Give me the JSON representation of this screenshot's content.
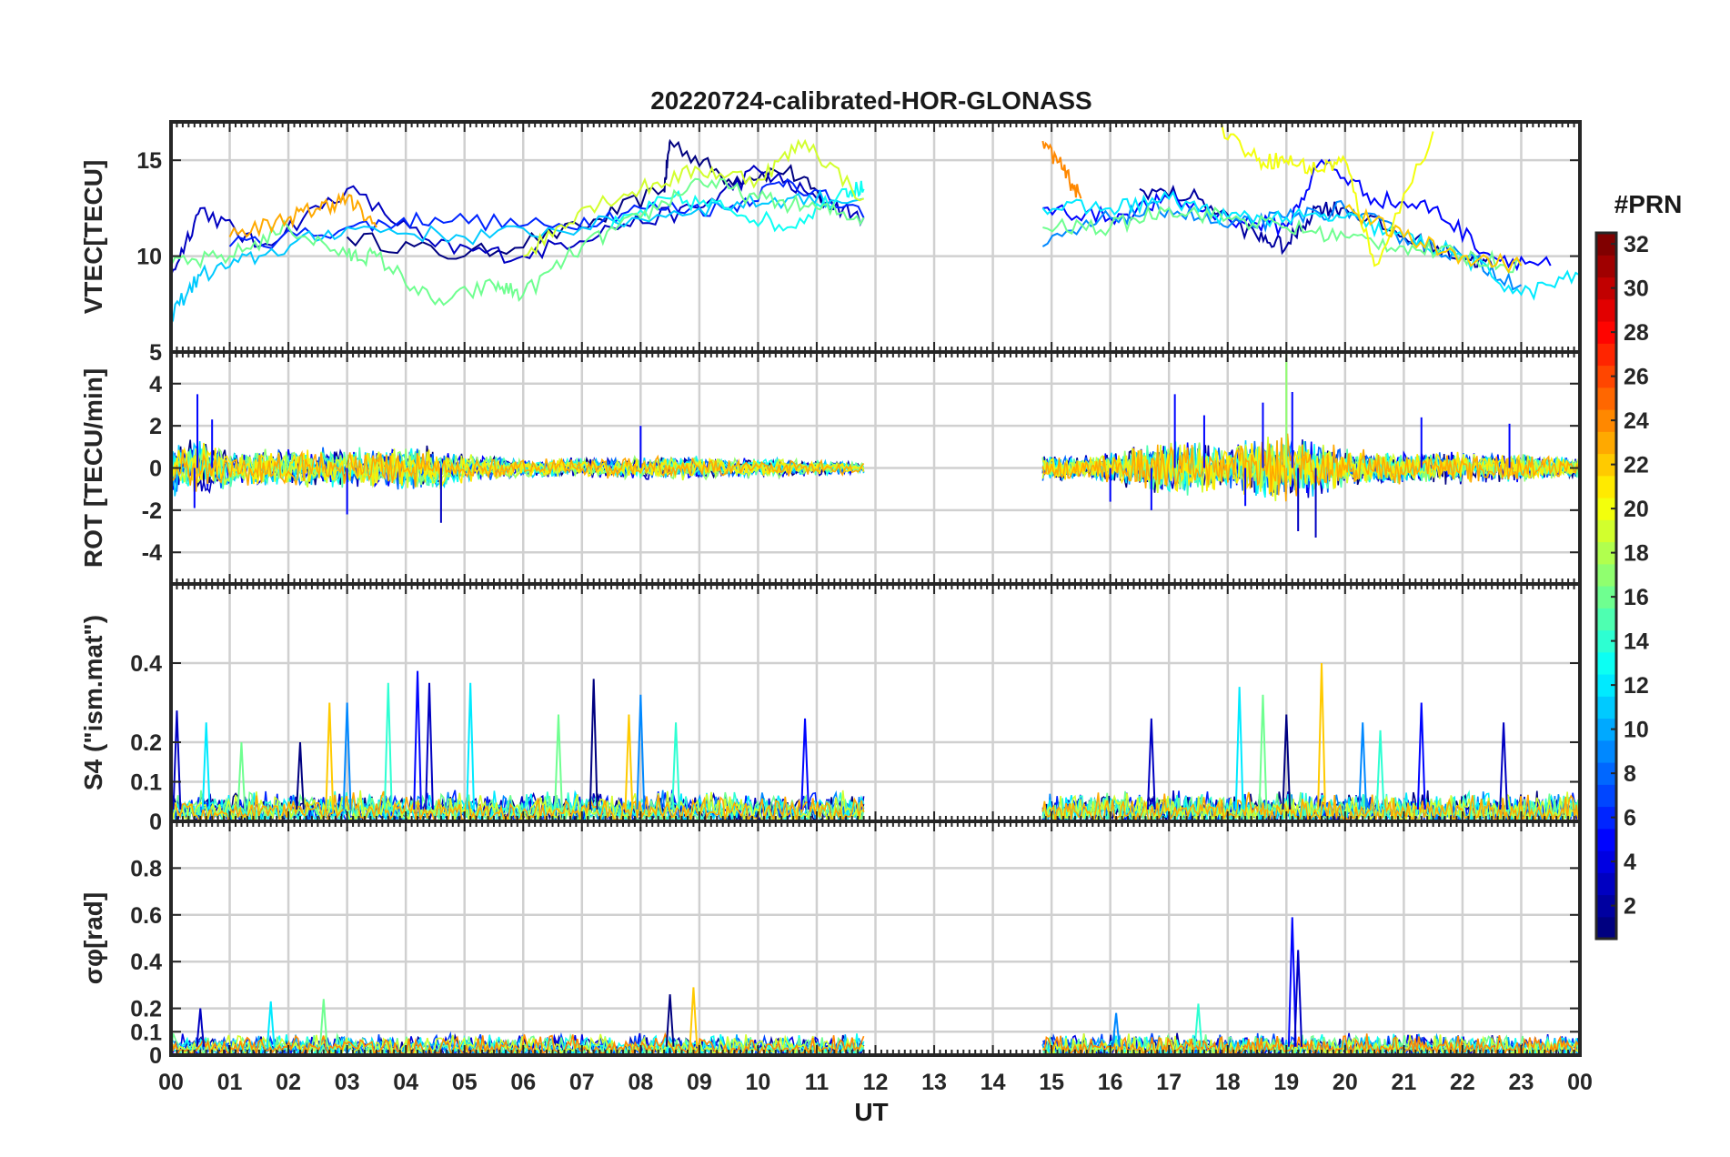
{
  "title": "20220724-calibrated-HOR-GLONASS",
  "xlabel": "UT",
  "x_ticks": [
    "00",
    "01",
    "02",
    "03",
    "04",
    "05",
    "06",
    "07",
    "08",
    "09",
    "10",
    "11",
    "12",
    "13",
    "14",
    "15",
    "16",
    "17",
    "18",
    "19",
    "20",
    "21",
    "22",
    "23",
    "00"
  ],
  "colorbar": {
    "label": "#PRN",
    "range": [
      1,
      32
    ],
    "ticks": [
      2,
      4,
      6,
      8,
      10,
      12,
      14,
      16,
      18,
      20,
      22,
      24,
      26,
      28,
      30,
      32
    ],
    "colormap": "jet",
    "colors": [
      "#00008f",
      "#0000ff",
      "#0080ff",
      "#00ffff",
      "#80ff80",
      "#ffff00",
      "#ff8000",
      "#ff0000",
      "#800000"
    ]
  },
  "chart_data": [
    {
      "type": "line",
      "panel": "vtec",
      "ylabel": "VTEC[TECU]",
      "ylim": [
        5,
        17
      ],
      "yticks": [
        5,
        10,
        15
      ],
      "xlim": [
        0,
        24
      ],
      "grid": true,
      "data_gap": [
        11.8,
        14.85
      ],
      "series": [
        {
          "prn": 1,
          "x": [
            3.0,
            5.0,
            7.0,
            8.4,
            8.5,
            9.5,
            10.5,
            11.3
          ],
          "y": [
            11.0,
            10.0,
            11.5,
            13.5,
            16.0,
            14.0,
            14.5,
            12.5
          ]
        },
        {
          "prn": 3,
          "x": [
            0.0,
            0.5,
            1.5,
            3.0,
            4.5,
            6.0,
            7.5,
            9.0,
            10.0,
            11.0,
            11.8
          ],
          "y": [
            9.0,
            12.5,
            10.5,
            13.5,
            10.5,
            10.0,
            11.5,
            12.5,
            14.5,
            13.0,
            12.0
          ]
        },
        {
          "prn": 6,
          "x": [
            1.0,
            3.0,
            4.5,
            6.5,
            8.0,
            9.5,
            10.5,
            11.8
          ],
          "y": [
            10.5,
            11.5,
            12.0,
            11.5,
            12.5,
            12.5,
            14.0,
            12.0
          ]
        },
        {
          "prn": 11,
          "x": [
            0.0,
            0.5,
            1.5,
            3.0,
            5.0,
            7.0,
            9.0,
            10.5,
            11.8
          ],
          "y": [
            7.0,
            9.0,
            10.0,
            11.5,
            11.0,
            11.5,
            12.5,
            13.0,
            13.0
          ]
        },
        {
          "prn": 13,
          "x": [
            7.5,
            8.5,
            9.5,
            10.5,
            11.5,
            11.8
          ],
          "y": [
            11.5,
            13.0,
            12.5,
            11.5,
            13.5,
            13.5
          ]
        },
        {
          "prn": 16,
          "x": [
            0.0,
            1.0,
            2.0,
            3.0,
            3.5,
            4.5,
            5.5,
            6.0,
            7.0,
            8.0,
            9.0,
            10.0,
            11.0,
            11.8
          ],
          "y": [
            9.5,
            10.0,
            11.5,
            10.0,
            10.0,
            7.5,
            8.5,
            8.0,
            10.5,
            12.0,
            14.0,
            13.0,
            12.5,
            12.0
          ]
        },
        {
          "prn": 19,
          "x": [
            6.0,
            7.0,
            8.0,
            9.0,
            10.0,
            10.8,
            11.8
          ],
          "y": [
            10.0,
            12.5,
            13.5,
            14.5,
            14.0,
            16.0,
            13.0
          ]
        },
        {
          "prn": 23,
          "x": [
            1.0,
            2.0,
            2.5,
            3.0,
            3.5
          ],
          "y": [
            11.0,
            12.0,
            12.5,
            13.0,
            11.5
          ]
        },
        {
          "prn": 2,
          "x": [
            16.5,
            17.5,
            18.5,
            19.0,
            19.5,
            20.0,
            21.0,
            22.0,
            22.5
          ],
          "y": [
            13.5,
            13.0,
            11.0,
            10.5,
            12.5,
            12.5,
            11.0,
            10.0,
            9.5
          ]
        },
        {
          "prn": 5,
          "x": [
            14.85,
            16.0,
            17.0,
            18.0,
            19.0,
            19.6,
            20.5,
            21.5,
            22.5,
            23.5
          ],
          "y": [
            12.5,
            12.0,
            13.0,
            12.0,
            11.5,
            15.0,
            13.0,
            12.5,
            10.0,
            9.5
          ]
        },
        {
          "prn": 9,
          "x": [
            14.85,
            16.0,
            17.0,
            18.0,
            19.0,
            20.0,
            21.0,
            22.0,
            23.0
          ],
          "y": [
            10.5,
            12.0,
            12.5,
            11.5,
            12.0,
            12.5,
            11.0,
            10.0,
            8.5
          ]
        },
        {
          "prn": 12,
          "x": [
            14.85,
            16.0,
            17.0,
            18.0,
            19.0,
            20.0,
            21.0,
            22.0,
            23.0,
            24.0
          ],
          "y": [
            12.5,
            12.5,
            13.0,
            12.0,
            12.0,
            12.0,
            11.0,
            10.0,
            8.0,
            9.0
          ]
        },
        {
          "prn": 16,
          "x": [
            14.85,
            16.0,
            17.0,
            18.0,
            19.0,
            20.0,
            21.0,
            22.0,
            23.0
          ],
          "y": [
            11.5,
            11.5,
            12.5,
            12.0,
            11.5,
            11.0,
            10.5,
            10.0,
            9.5
          ]
        },
        {
          "prn": 20,
          "x": [
            17.8,
            18.5,
            19.0,
            19.5,
            20.0,
            20.5,
            21.5
          ],
          "y": [
            17.0,
            15.0,
            15.0,
            14.5,
            15.0,
            9.5,
            16.5
          ]
        },
        {
          "prn": 22,
          "x": [
            20.0,
            21.0,
            22.0,
            23.0
          ],
          "y": [
            12.5,
            11.0,
            10.0,
            9.5
          ]
        },
        {
          "prn": 24,
          "x": [
            14.85,
            15.2,
            15.5
          ],
          "y": [
            16.0,
            14.5,
            13.0
          ]
        }
      ]
    },
    {
      "type": "line",
      "panel": "rot",
      "ylabel": "ROT [TECU/min]",
      "ylim": [
        -5.5,
        5.5
      ],
      "yticks": [
        -4,
        -2,
        0,
        2,
        4
      ],
      "xlim": [
        0,
        24
      ],
      "grid": true,
      "data_gap": [
        11.8,
        14.85
      ],
      "noise_envelope": {
        "x": [
          0,
          0.5,
          1,
          2,
          3,
          4,
          4.6,
          5,
          6,
          7,
          8,
          9,
          10,
          11,
          11.8,
          14.85,
          15.5,
          16,
          17,
          18,
          19,
          20,
          21,
          22,
          23,
          24
        ],
        "amplitude": [
          1.6,
          1.4,
          1.0,
          1.0,
          1.0,
          1.1,
          1.2,
          0.7,
          0.5,
          0.5,
          0.6,
          0.6,
          0.5,
          0.4,
          0.3,
          0.7,
          0.6,
          0.8,
          1.4,
          1.2,
          1.8,
          1.0,
          0.8,
          0.8,
          0.7,
          0.5
        ]
      },
      "spikes": [
        {
          "x": 0.45,
          "y": 3.5
        },
        {
          "x": 0.7,
          "y": 2.3
        },
        {
          "x": 0.4,
          "y": -1.9
        },
        {
          "x": 3.0,
          "y": -2.2
        },
        {
          "x": 4.6,
          "y": -2.6
        },
        {
          "x": 8.0,
          "y": 2.0
        },
        {
          "x": 16.7,
          "y": -2.0
        },
        {
          "x": 17.1,
          "y": 3.5
        },
        {
          "x": 17.6,
          "y": 2.5
        },
        {
          "x": 18.6,
          "y": 3.1
        },
        {
          "x": 19.0,
          "y": 5.5
        },
        {
          "x": 19.1,
          "y": 3.6
        },
        {
          "x": 19.2,
          "y": -3.0
        },
        {
          "x": 19.5,
          "y": -3.3
        },
        {
          "x": 21.3,
          "y": 2.4
        },
        {
          "x": 22.8,
          "y": 2.1
        },
        {
          "x": 16.0,
          "y": -1.6
        },
        {
          "x": 18.3,
          "y": -1.8
        }
      ]
    },
    {
      "type": "line",
      "panel": "s4",
      "ylabel": "S4 (\"ism.mat\")",
      "ylim": [
        0,
        0.6
      ],
      "yticks": [
        0,
        0.1,
        0.2,
        0.4
      ],
      "xlim": [
        0,
        24
      ],
      "grid": true,
      "data_gap": [
        11.8,
        14.85
      ],
      "baseline_noise": 0.05,
      "spikes": [
        {
          "x": 0.1,
          "y": 0.28
        },
        {
          "x": 0.6,
          "y": 0.25
        },
        {
          "x": 1.2,
          "y": 0.2
        },
        {
          "x": 2.2,
          "y": 0.2
        },
        {
          "x": 2.7,
          "y": 0.3
        },
        {
          "x": 3.0,
          "y": 0.3
        },
        {
          "x": 3.7,
          "y": 0.35
        },
        {
          "x": 4.2,
          "y": 0.38
        },
        {
          "x": 4.4,
          "y": 0.35
        },
        {
          "x": 5.1,
          "y": 0.35
        },
        {
          "x": 6.6,
          "y": 0.27
        },
        {
          "x": 7.2,
          "y": 0.36
        },
        {
          "x": 7.8,
          "y": 0.27
        },
        {
          "x": 8.0,
          "y": 0.32
        },
        {
          "x": 8.6,
          "y": 0.25
        },
        {
          "x": 10.8,
          "y": 0.26
        },
        {
          "x": 16.7,
          "y": 0.26
        },
        {
          "x": 18.2,
          "y": 0.34
        },
        {
          "x": 18.6,
          "y": 0.32
        },
        {
          "x": 19.0,
          "y": 0.27
        },
        {
          "x": 19.6,
          "y": 0.4
        },
        {
          "x": 20.3,
          "y": 0.25
        },
        {
          "x": 20.6,
          "y": 0.23
        },
        {
          "x": 21.3,
          "y": 0.3
        },
        {
          "x": 22.7,
          "y": 0.25
        }
      ]
    },
    {
      "type": "line",
      "panel": "sigma_phi",
      "ylabel": "σφ[rad]",
      "ylim": [
        0,
        1.0
      ],
      "yticks": [
        0,
        0.1,
        0.2,
        0.4,
        0.6,
        0.8
      ],
      "xlim": [
        0,
        24
      ],
      "grid": true,
      "data_gap": [
        11.8,
        14.85
      ],
      "baseline_noise": 0.06,
      "spikes": [
        {
          "x": 0.5,
          "y": 0.2
        },
        {
          "x": 1.7,
          "y": 0.23
        },
        {
          "x": 2.6,
          "y": 0.24
        },
        {
          "x": 8.5,
          "y": 0.26
        },
        {
          "x": 8.9,
          "y": 0.29
        },
        {
          "x": 16.1,
          "y": 0.18
        },
        {
          "x": 17.5,
          "y": 0.22
        },
        {
          "x": 19.1,
          "y": 0.59
        },
        {
          "x": 19.2,
          "y": 0.45
        }
      ]
    }
  ]
}
